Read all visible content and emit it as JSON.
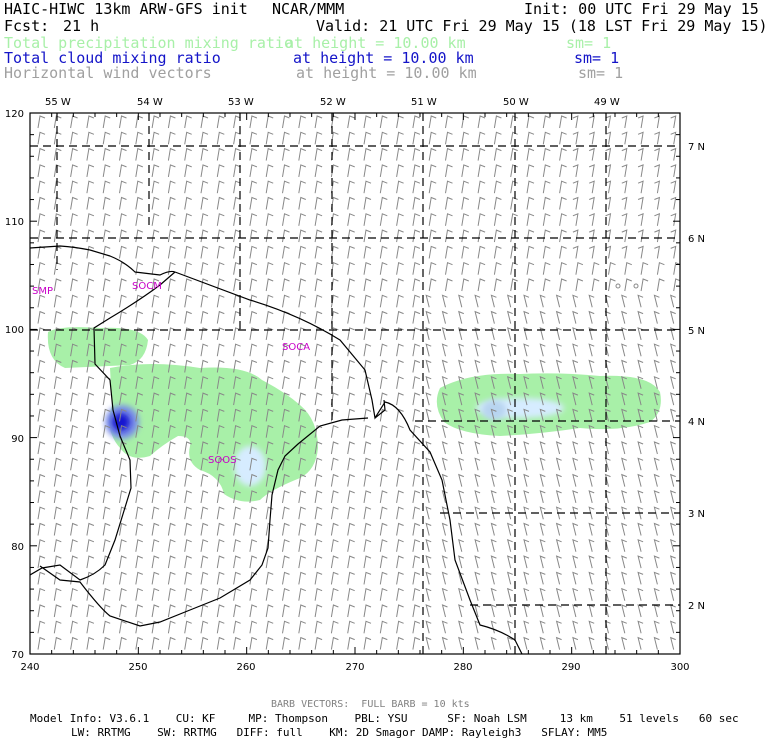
{
  "header": {
    "model": "HAIC-HIWC 13km ARW-GFS init",
    "center": "NCAR/MMM",
    "init": "Init: 00 UTC Fri 29 May 15",
    "fcst_label": "Fcst:",
    "fcst_value": "21 h",
    "valid": "Valid: 21 UTC Fri 29 May 15 (18 LST Fri 29 May 15)",
    "fields": [
      {
        "name": "Total precipitation mixing ratio",
        "level": "at height = 10.00 km",
        "smooth": "sm= 1",
        "color": "#a8f0a8"
      },
      {
        "name": "Total cloud mixing ratio",
        "level": "at height = 10.00 km",
        "smooth": "sm= 1",
        "color": "#1414c8"
      },
      {
        "name": "Horizontal wind vectors",
        "level": "at height = 10.00 km",
        "smooth": "sm= 1",
        "color": "#a0a0a0"
      }
    ]
  },
  "map": {
    "lon_labels": [
      "55 W",
      "54 W",
      "53 W",
      "52 W",
      "51 W",
      "50 W",
      "49 W"
    ],
    "lat_labels": [
      "7 N",
      "6 N",
      "5 N",
      "4 N",
      "3 N",
      "2 N"
    ],
    "x_ticks": [
      "240",
      "250",
      "260",
      "270",
      "280",
      "290",
      "300"
    ],
    "y_ticks": [
      "120",
      "110",
      "100",
      "90",
      "80",
      "70"
    ],
    "region_labels": [
      "SMP",
      "SOCM",
      "SOCA",
      "SOOS"
    ],
    "label_color": "#c800c8"
  },
  "footer": {
    "barb_note": "BARB VECTORS:  FULL BARB = 10 kts",
    "info_line1": "Model Info: V3.6.1    CU: KF     MP: Thompson    PBL: YSU      SF: Noah LSM     13 km    51 levels   60 sec",
    "info_line2": "LW: RRTMG    SW: RRTMG   DIFF: full    KM: 2D Smagor DAMP: Rayleigh3   SFLAY: MM5"
  }
}
